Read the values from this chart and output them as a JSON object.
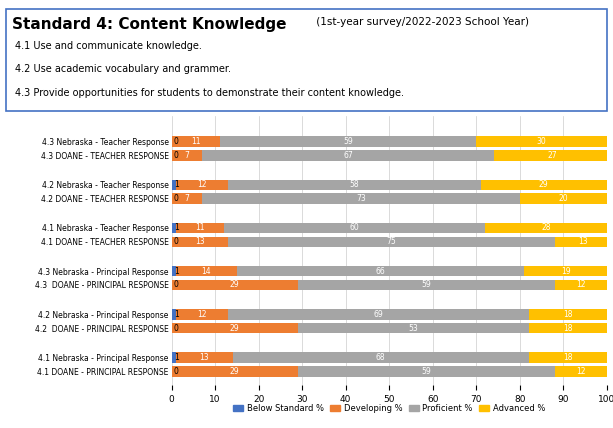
{
  "title_main": "Standard 4: Content Knowledge",
  "title_sub": " (1st-year survey/2022-2023 School Year)",
  "subtitle_lines": [
    "4.1 Use and communicate knowledge.",
    "4.2 Use academic vocabulary and grammer.",
    "4.3 Provide opportunities for students to demonstrate their content knowledge."
  ],
  "categories": [
    "4.3 Nebraska - Teacher Response",
    "4.3 DOANE - TEACHER RESPONSE",
    "4.2 Nebraska - Teacher Response",
    "4.2 DOANE - TEACHER RESPONSE",
    "4.1 Nebraska - Teacher Response",
    "4.1 DOANE - TEACHER RESPONSE",
    "4.3 Nebraska - Principal Response",
    "4.3  DOANE - PRINCIPAL RESPONSE",
    "4.2 Nebraska - Principal Response",
    "4.2  DOANE - PRINCIPAL RESPONSE",
    "4.1 Nebraska - Principal Response",
    "4.1 DOANE - PRINCIPAL RESPONSE"
  ],
  "below_standard": [
    0,
    0,
    1,
    0,
    1,
    0,
    1,
    0,
    1,
    0,
    1,
    0
  ],
  "developing": [
    11,
    7,
    12,
    7,
    11,
    13,
    14,
    29,
    12,
    29,
    13,
    29
  ],
  "proficient": [
    59,
    67,
    58,
    73,
    60,
    75,
    66,
    59,
    69,
    53,
    68,
    59
  ],
  "advanced": [
    30,
    27,
    29,
    20,
    28,
    13,
    19,
    12,
    18,
    18,
    18,
    12
  ],
  "colors": {
    "below_standard": "#4472C4",
    "developing": "#ED7D31",
    "proficient": "#A5A5A5",
    "advanced": "#FFC000"
  },
  "xlim": [
    0,
    100
  ],
  "xticks": [
    0,
    10,
    20,
    30,
    40,
    50,
    60,
    70,
    80,
    90,
    100
  ],
  "legend_labels": [
    "Below Standard %",
    "Developing %",
    "Proficient %",
    "Advanced %"
  ],
  "box_color": "#4472C4",
  "background_color": "#FFFFFF",
  "group_gaps": [
    0,
    1,
    2,
    3,
    4,
    5,
    7,
    8,
    10,
    11,
    13,
    14
  ]
}
